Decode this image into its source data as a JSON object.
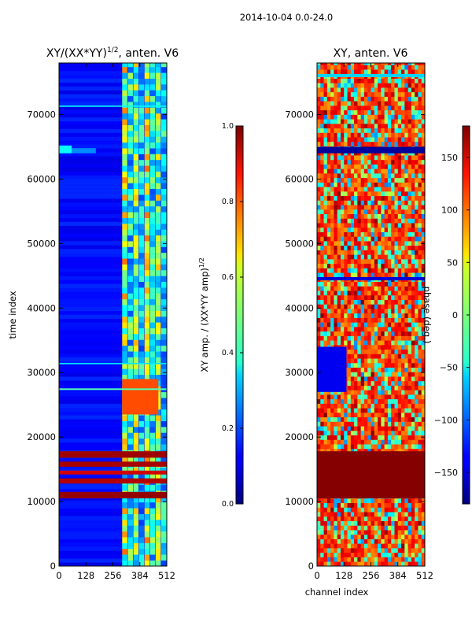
{
  "figure_title": "2014-10-04 0.0-24.0",
  "chart_data": [
    {
      "type": "heatmap",
      "title_prefix": "XY/(XX*YY)",
      "title_superscript": "1/2",
      "title_suffix": ", anten. V6",
      "xlabel": "",
      "ylabel": "time index",
      "xlim": [
        0,
        512
      ],
      "ylim": [
        0,
        78000
      ],
      "xticks": [
        0,
        128,
        256,
        384,
        512
      ],
      "yticks": [
        0,
        10000,
        20000,
        30000,
        40000,
        50000,
        60000,
        70000
      ],
      "colorbar": {
        "label_prefix": "XY amp. / (XX*YY amp)",
        "label_superscript": "1/2",
        "range": [
          0.0,
          1.0
        ],
        "ticks": [
          "0.0",
          "0.2",
          "0.4",
          "0.6",
          "0.8",
          "1.0"
        ],
        "colormap": "jet"
      },
      "background_value": 0.12,
      "features": [
        {
          "kind": "hband",
          "y0": 10500,
          "y1": 11500,
          "value": 0.98
        },
        {
          "kind": "hband",
          "y0": 12800,
          "y1": 13600,
          "value": 0.95
        },
        {
          "kind": "hband",
          "y0": 14200,
          "y1": 14800,
          "value": 0.92
        },
        {
          "kind": "hband",
          "y0": 15400,
          "y1": 16200,
          "value": 0.96
        },
        {
          "kind": "hband",
          "y0": 16800,
          "y1": 17800,
          "value": 0.97
        },
        {
          "kind": "rect",
          "x0": 0,
          "x1": 60,
          "y0": 64000,
          "y1": 65200,
          "value": 0.38
        },
        {
          "kind": "rect",
          "x0": 60,
          "x1": 175,
          "y0": 64000,
          "y1": 64800,
          "value": 0.26
        },
        {
          "kind": "rect",
          "x0": 300,
          "x1": 472,
          "y0": 23500,
          "y1": 29000,
          "value": 0.8
        },
        {
          "kind": "hband",
          "y0": 27300,
          "y1": 27550,
          "value": 0.45
        },
        {
          "kind": "hband",
          "y0": 31300,
          "y1": 31500,
          "value": 0.35
        },
        {
          "kind": "hband",
          "y0": 71200,
          "y1": 71400,
          "value": 0.38
        }
      ],
      "activity_region": {
        "x0": 300,
        "x1": 512,
        "y0": 0,
        "y1": 78000,
        "column_values": [
          0.55,
          0.4,
          0.5,
          0.35
        ]
      }
    },
    {
      "type": "heatmap",
      "title": "XY, anten. V6",
      "xlabel": "channel index",
      "ylabel": "",
      "xlim": [
        0,
        512
      ],
      "ylim": [
        0,
        78000
      ],
      "xticks": [
        0,
        128,
        256,
        384,
        512
      ],
      "yticks": [
        0,
        10000,
        20000,
        30000,
        40000,
        50000,
        60000,
        70000
      ],
      "colorbar": {
        "label": "phase (deg.)",
        "range": [
          -180,
          180
        ],
        "ticks": [
          "−150",
          "−100",
          "−50",
          "0",
          "50",
          "100",
          "150"
        ],
        "tick_values": [
          -150,
          -100,
          -50,
          0,
          50,
          100,
          150
        ],
        "colormap": "jet"
      },
      "background_value": 120,
      "features": [
        {
          "kind": "rect",
          "x0": 0,
          "x1": 512,
          "y0": 64000,
          "y1": 65000,
          "value": -170
        },
        {
          "kind": "rect",
          "x0": 0,
          "x1": 512,
          "y0": 44300,
          "y1": 44800,
          "value": -150
        },
        {
          "kind": "rect",
          "x0": 0,
          "x1": 512,
          "y0": 10500,
          "y1": 17800,
          "value": 178
        },
        {
          "kind": "rect",
          "x0": 0,
          "x1": 140,
          "y0": 27000,
          "y1": 34000,
          "value": -140
        },
        {
          "kind": "rect",
          "x0": 0,
          "x1": 512,
          "y0": 75800,
          "y1": 76300,
          "value": -60
        }
      ]
    }
  ]
}
